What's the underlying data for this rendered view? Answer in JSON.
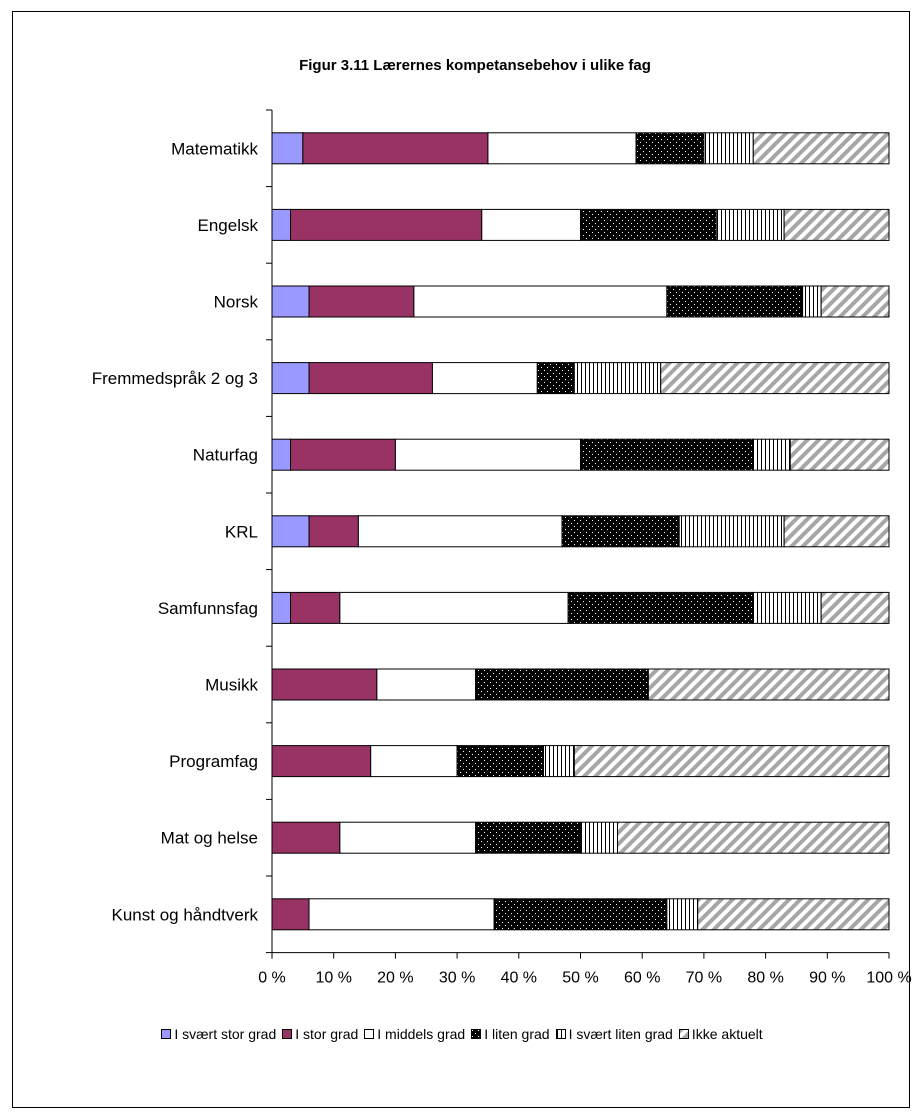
{
  "chart_data": {
    "type": "bar",
    "orientation": "horizontal",
    "stacked": "percent",
    "title": "Figur 3.11  Lærernes kompetansebehov i ulike fag",
    "xlim": [
      0,
      100
    ],
    "xticks": [
      "0 %",
      "10 %",
      "20 %",
      "30 %",
      "40 %",
      "50 %",
      "60 %",
      "70 %",
      "80 %",
      "90 %",
      "100 %"
    ],
    "categories": [
      "Matematikk",
      "Engelsk",
      "Norsk",
      "Fremmedspråk 2 og 3",
      "Naturfag",
      "KRL",
      "Samfunnsfag",
      "Musikk",
      "Programfag",
      "Mat og helse",
      "Kunst og håndtverk"
    ],
    "series": [
      {
        "name": "I svært stor grad",
        "color": "#9999ff",
        "pattern": "solid",
        "values": [
          5,
          3,
          6,
          6,
          3,
          6,
          3,
          0,
          0,
          0,
          0
        ]
      },
      {
        "name": "I stor grad",
        "color": "#993366",
        "pattern": "solid",
        "values": [
          30,
          31,
          17,
          20,
          17,
          8,
          8,
          17,
          16,
          11,
          6
        ]
      },
      {
        "name": "I middels grad",
        "color": "#ffffff",
        "pattern": "solid",
        "values": [
          24,
          16,
          41,
          17,
          30,
          33,
          37,
          16,
          14,
          22,
          30
        ]
      },
      {
        "name": "I liten grad",
        "color": "#000000",
        "pattern": "dots",
        "values": [
          11,
          22,
          22,
          6,
          28,
          19,
          30,
          28,
          14,
          17,
          28
        ]
      },
      {
        "name": "I svært liten grad",
        "color": "#ffffff",
        "pattern": "vlines",
        "values": [
          8,
          11,
          3,
          14,
          6,
          17,
          11,
          0,
          5,
          6,
          5
        ]
      },
      {
        "name": "Ikke aktuelt",
        "color": "#c0c0c0",
        "pattern": "diag",
        "values": [
          22,
          17,
          11,
          37,
          16,
          17,
          11,
          39,
          51,
          44,
          31
        ]
      }
    ],
    "legend": "bottom",
    "grid": false
  }
}
